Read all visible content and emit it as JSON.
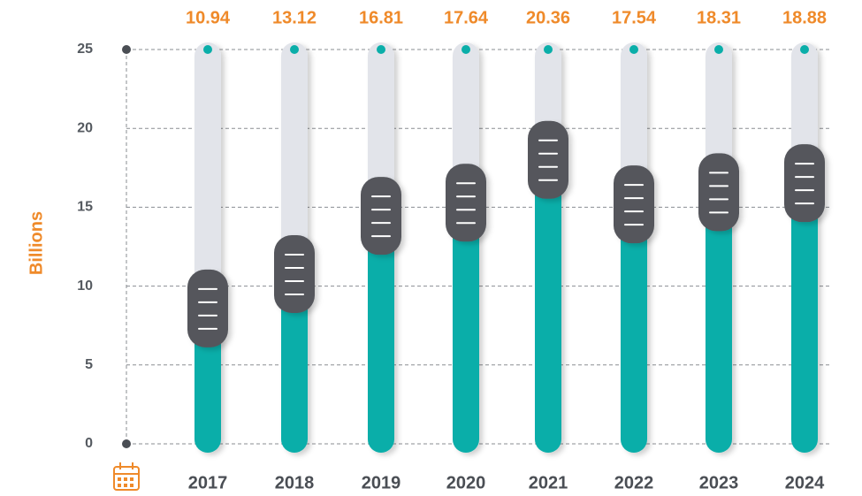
{
  "chart_data": {
    "type": "bar",
    "y_label": "Billions",
    "categories": [
      "2017",
      "2018",
      "2019",
      "2020",
      "2021",
      "2022",
      "2023",
      "2024"
    ],
    "values": [
      10.94,
      13.12,
      16.81,
      17.64,
      20.36,
      17.54,
      18.31,
      18.88
    ],
    "color": "#0aaea9",
    "track_color": "#e2e4ea",
    "knob_color": "#54575c",
    "ylim": [
      0,
      25
    ],
    "yticks": [
      0,
      5,
      10,
      15,
      20,
      25
    ],
    "grid": true
  }
}
